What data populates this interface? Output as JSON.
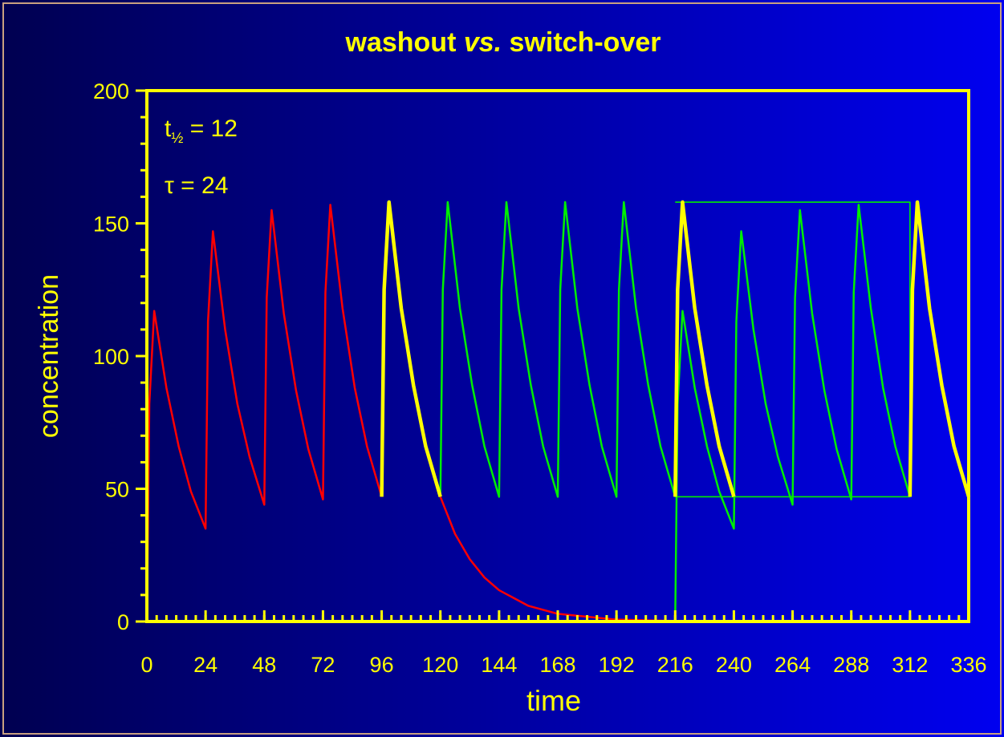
{
  "chart_data": {
    "type": "line",
    "title": [
      "washout ",
      "vs.",
      " switch-over"
    ],
    "annotations": [
      {
        "base": "t",
        "subscript": "½",
        "text": " = 12"
      },
      {
        "text": "τ = 24"
      }
    ],
    "xlabel": "time",
    "ylabel": "concentration",
    "xlim": [
      0,
      336
    ],
    "ylim": [
      0,
      200
    ],
    "xticks": [
      0,
      24,
      48,
      72,
      96,
      120,
      144,
      168,
      192,
      216,
      240,
      264,
      288,
      312,
      336
    ],
    "yticks": [
      0,
      50,
      100,
      150,
      200
    ],
    "x_minor_step": 4,
    "y_minor_step": 10,
    "axis_color": "#ffff00",
    "series": [
      {
        "color": "#ff0000",
        "x": [
          0,
          1,
          3,
          8,
          13,
          18,
          24,
          25,
          27,
          32,
          37,
          42,
          48,
          49,
          51,
          56,
          61,
          66,
          72,
          73,
          75,
          80,
          85,
          90,
          96,
          null,
          120,
          126,
          132,
          138,
          144,
          156,
          168,
          192,
          216,
          240,
          336
        ],
        "values": [
          0,
          82,
          117,
          88,
          66,
          49,
          35,
          113,
          147,
          110,
          82,
          62,
          44,
          122,
          155,
          116,
          87,
          65,
          46,
          124,
          157,
          118,
          88,
          66,
          47,
          null,
          47,
          33,
          23.5,
          16.6,
          11.8,
          5.9,
          2.9,
          0.7,
          0.2,
          0,
          0
        ]
      },
      {
        "color": "#00ee00",
        "x": [
          120,
          121,
          123,
          128,
          133,
          138,
          144,
          145,
          147,
          152,
          157,
          162,
          168,
          169,
          171,
          176,
          181,
          186,
          192,
          193,
          195,
          200,
          205,
          210,
          216
        ],
        "values": [
          47,
          125,
          158,
          118,
          89,
          66,
          47,
          125,
          158,
          118,
          89,
          66,
          47,
          125,
          158,
          118,
          89,
          66,
          47,
          125,
          158,
          118,
          89,
          66,
          47
        ]
      },
      {
        "color": "#00ee00",
        "x": [
          216,
          217,
          219,
          224,
          229,
          234,
          240,
          241,
          243,
          248,
          253,
          258,
          264,
          265,
          267,
          272,
          277,
          282,
          288,
          289,
          291,
          296,
          301,
          306,
          312
        ],
        "values": [
          0,
          82,
          117,
          88,
          66,
          49,
          35,
          113,
          147,
          110,
          82,
          62,
          44,
          122,
          155,
          116,
          87,
          65,
          46,
          124,
          157,
          118,
          88,
          66,
          47
        ]
      },
      {
        "color": "#00ee00",
        "x": [
          216,
          312,
          312,
          216
        ],
        "values": [
          158,
          158,
          47,
          47
        ]
      },
      {
        "color": "#ffff00",
        "x": [
          96,
          97,
          99,
          104,
          109,
          114,
          120,
          null,
          216,
          217,
          219,
          224,
          229,
          234,
          240,
          null,
          312,
          313,
          315,
          320,
          325,
          330,
          336
        ],
        "values": [
          47,
          125,
          158,
          118,
          89,
          66,
          47,
          null,
          47,
          125,
          158,
          118,
          89,
          66,
          47,
          null,
          47,
          125,
          158,
          118,
          89,
          66,
          47
        ]
      }
    ]
  }
}
